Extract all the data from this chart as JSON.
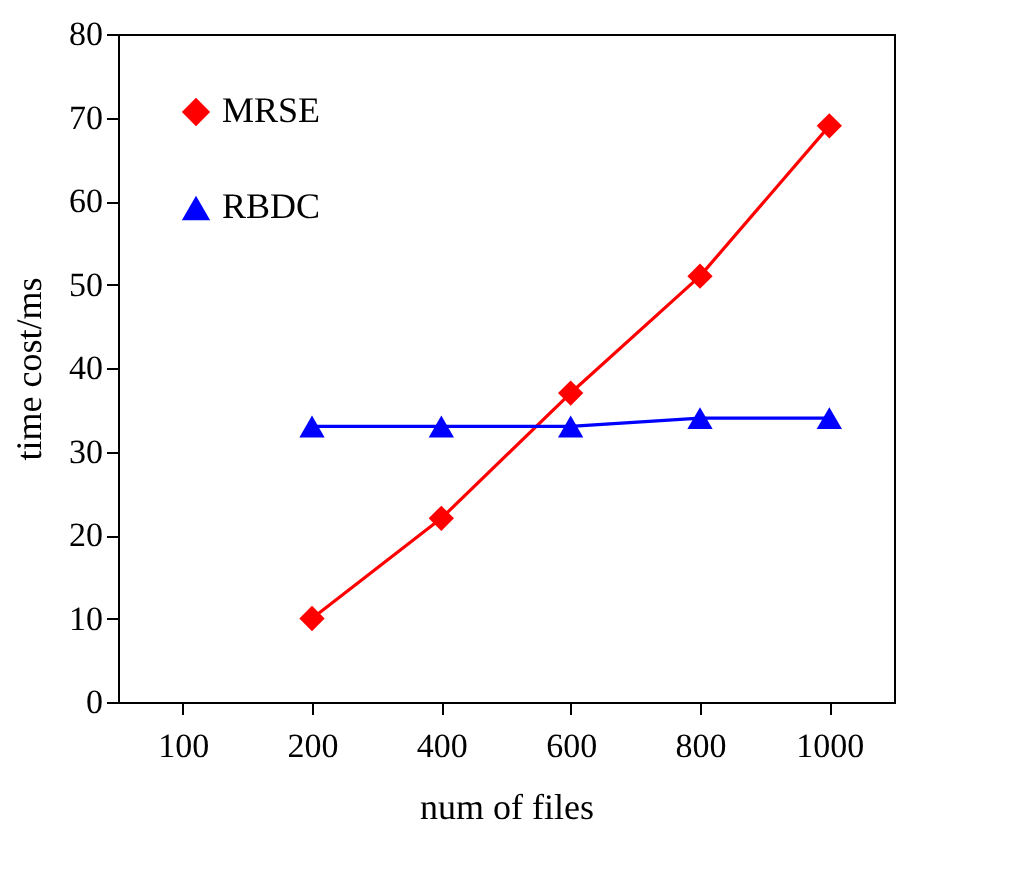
{
  "chart_data": {
    "type": "line",
    "xlabel": "num of files",
    "ylabel": "time cost/ms",
    "categories": [
      "100",
      "200",
      "400",
      "600",
      "800",
      "1000"
    ],
    "series": [
      {
        "name": "MRSE",
        "color": "#ff0000",
        "marker": "diamond",
        "values": [
          null,
          10,
          22,
          37,
          51,
          69
        ]
      },
      {
        "name": "RBDC",
        "color": "#0000ff",
        "marker": "triangle",
        "values": [
          null,
          33,
          33,
          33,
          34,
          34
        ]
      }
    ],
    "ylim": [
      0,
      80
    ],
    "yticks": [
      0,
      10,
      20,
      30,
      40,
      50,
      60,
      70,
      80
    ],
    "grid": false,
    "legend": "top left",
    "line_style": "solid"
  }
}
